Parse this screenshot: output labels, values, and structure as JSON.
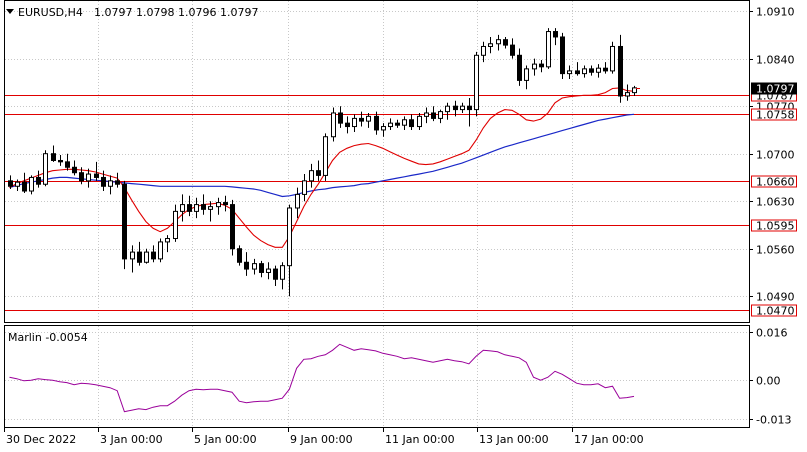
{
  "header": {
    "symbol": "EURUSD,H4",
    "ohlc": "1.0797 1.0798 1.0796 1.0797"
  },
  "indicator": {
    "label": "Marlin -0.0054",
    "color": "#9a009a"
  },
  "colors": {
    "level": "#e00000",
    "ma_fast": "#e00000",
    "ma_slow": "#1a28c8",
    "candle": "#000000"
  },
  "chart_data": [
    {
      "type": "candlestick",
      "title": "EURUSD,H4",
      "ylim": [
        1.0452,
        1.0925
      ],
      "y_ticks": [
        "1.0910",
        "1.0840",
        "1.0770",
        "1.0700",
        "1.0630",
        "1.0560",
        "1.0490"
      ],
      "x_ticks": [
        "30 Dec 2022",
        "3 Jan 00:00",
        "5 Jan 00:00",
        "9 Jan 00:00",
        "11 Jan 00:00",
        "13 Jan 00:00",
        "17 Jan 00:00"
      ],
      "current_price": "1.0797",
      "levels": [
        "1.0787",
        "1.0758",
        "1.0660",
        "1.0595",
        "1.0470"
      ],
      "candles": [
        [
          1.066,
          1.0668,
          1.0648,
          1.0652
        ],
        [
          1.0652,
          1.0662,
          1.0645,
          1.0658
        ],
        [
          1.0658,
          1.0672,
          1.0642,
          1.0645
        ],
        [
          1.0645,
          1.0668,
          1.064,
          1.0665
        ],
        [
          1.0665,
          1.0675,
          1.065,
          1.0655
        ],
        [
          1.0655,
          1.0705,
          1.0652,
          1.07
        ],
        [
          1.07,
          1.0712,
          1.0688,
          1.069
        ],
        [
          1.069,
          1.0698,
          1.0682,
          1.0688
        ],
        [
          1.0688,
          1.07,
          1.0675,
          1.068
        ],
        [
          1.068,
          1.069,
          1.0668,
          1.0672
        ],
        [
          1.0672,
          1.068,
          1.0655,
          1.066
        ],
        [
          1.066,
          1.0678,
          1.065,
          1.067
        ],
        [
          1.067,
          1.0688,
          1.066,
          1.0665
        ],
        [
          1.0665,
          1.0675,
          1.0645,
          1.0652
        ],
        [
          1.0652,
          1.0668,
          1.064,
          1.066
        ],
        [
          1.066,
          1.0672,
          1.065,
          1.0655
        ],
        [
          1.0655,
          1.066,
          1.053,
          1.0545
        ],
        [
          1.0545,
          1.0565,
          1.0525,
          1.0555
        ],
        [
          1.0555,
          1.057,
          1.0535,
          1.054
        ],
        [
          1.054,
          1.056,
          1.0538,
          1.0555
        ],
        [
          1.0555,
          1.0565,
          1.054,
          1.0545
        ],
        [
          1.0545,
          1.0575,
          1.054,
          1.057
        ],
        [
          1.057,
          1.058,
          1.0555,
          1.0575
        ],
        [
          1.0575,
          1.0625,
          1.057,
          1.0615
        ],
        [
          1.0615,
          1.064,
          1.06,
          1.0625
        ],
        [
          1.0625,
          1.0638,
          1.0608,
          1.0615
        ],
        [
          1.0615,
          1.0635,
          1.0605,
          1.0625
        ],
        [
          1.0625,
          1.064,
          1.061,
          1.0618
        ],
        [
          1.0618,
          1.063,
          1.06,
          1.0622
        ],
        [
          1.0622,
          1.0635,
          1.061,
          1.0628
        ],
        [
          1.0628,
          1.0638,
          1.0615,
          1.0625
        ],
        [
          1.0625,
          1.0632,
          1.055,
          1.056
        ],
        [
          1.056,
          1.0565,
          1.0535,
          1.054
        ],
        [
          1.054,
          1.0555,
          1.052,
          1.053
        ],
        [
          1.053,
          1.0545,
          1.0522,
          1.0538
        ],
        [
          1.0538,
          1.0542,
          1.0518,
          1.0525
        ],
        [
          1.0525,
          1.054,
          1.0515,
          1.053
        ],
        [
          1.053,
          1.0535,
          1.0505,
          1.0515
        ],
        [
          1.0515,
          1.054,
          1.05,
          1.0535
        ],
        [
          1.0535,
          1.0625,
          1.049,
          1.062
        ],
        [
          1.062,
          1.065,
          1.0605,
          1.064
        ],
        [
          1.064,
          1.067,
          1.063,
          1.066
        ],
        [
          1.066,
          1.0685,
          1.065,
          1.0675
        ],
        [
          1.0675,
          1.069,
          1.066,
          1.0668
        ],
        [
          1.0668,
          1.073,
          1.066,
          1.0725
        ],
        [
          1.0725,
          1.0768,
          1.0718,
          1.076
        ],
        [
          1.076,
          1.077,
          1.0738,
          1.0745
        ],
        [
          1.0745,
          1.0755,
          1.073,
          1.074
        ],
        [
          1.074,
          1.0758,
          1.0732,
          1.0752
        ],
        [
          1.0752,
          1.0762,
          1.074,
          1.0748
        ],
        [
          1.0748,
          1.076,
          1.0738,
          1.0755
        ],
        [
          1.0755,
          1.0762,
          1.0728,
          1.0735
        ],
        [
          1.0735,
          1.0745,
          1.0725,
          1.074
        ],
        [
          1.074,
          1.0752,
          1.0735,
          1.0745
        ],
        [
          1.0745,
          1.075,
          1.0738,
          1.0742
        ],
        [
          1.0742,
          1.0755,
          1.0735,
          1.075
        ],
        [
          1.075,
          1.0758,
          1.0735,
          1.074
        ],
        [
          1.074,
          1.076,
          1.0735,
          1.0755
        ],
        [
          1.0755,
          1.0768,
          1.0745,
          1.076
        ],
        [
          1.076,
          1.077,
          1.0748,
          1.0752
        ],
        [
          1.0752,
          1.0765,
          1.0745,
          1.0762
        ],
        [
          1.0762,
          1.0775,
          1.075,
          1.077
        ],
        [
          1.077,
          1.0778,
          1.0755,
          1.0765
        ],
        [
          1.0765,
          1.0775,
          1.076,
          1.077
        ],
        [
          1.077,
          1.0782,
          1.074,
          1.0765
        ],
        [
          1.0765,
          1.085,
          1.0755,
          1.0845
        ],
        [
          1.0845,
          1.0865,
          1.0835,
          1.0858
        ],
        [
          1.0858,
          1.0872,
          1.0848,
          1.0862
        ],
        [
          1.0862,
          1.0875,
          1.0852,
          1.0868
        ],
        [
          1.0868,
          1.0872,
          1.0855,
          1.086
        ],
        [
          1.086,
          1.087,
          1.084,
          1.0845
        ],
        [
          1.0845,
          1.0855,
          1.08,
          1.0808
        ],
        [
          1.0808,
          1.083,
          1.0795,
          1.0825
        ],
        [
          1.0825,
          1.084,
          1.0815,
          1.0832
        ],
        [
          1.0832,
          1.0838,
          1.082,
          1.0828
        ],
        [
          1.0828,
          1.0885,
          1.0825,
          1.088
        ],
        [
          1.088,
          1.0885,
          1.086,
          1.0872
        ],
        [
          1.0872,
          1.0878,
          1.081,
          1.0818
        ],
        [
          1.0818,
          1.083,
          1.081,
          1.0822
        ],
        [
          1.0822,
          1.0835,
          1.0815,
          1.0818
        ],
        [
          1.0818,
          1.083,
          1.0812,
          1.0825
        ],
        [
          1.0825,
          1.083,
          1.0815,
          1.082
        ],
        [
          1.082,
          1.0832,
          1.0812,
          1.0826
        ],
        [
          1.0826,
          1.0835,
          1.0818,
          1.0822
        ],
        [
          1.0822,
          1.0865,
          1.0818,
          1.0858
        ],
        [
          1.0858,
          1.0875,
          1.0775,
          1.0785
        ],
        [
          1.0785,
          1.0802,
          1.0778,
          1.079
        ],
        [
          1.079,
          1.08,
          1.0785,
          1.0797
        ]
      ],
      "ma_fast": [
        1.065,
        1.0656,
        1.066,
        1.0664,
        1.0668,
        1.0672,
        1.0675,
        1.0676,
        1.0677,
        1.0677,
        1.0676,
        1.0675,
        1.0673,
        1.067,
        1.0667,
        1.0664,
        1.065,
        1.0632,
        1.0615,
        1.06,
        1.059,
        1.0585,
        1.059,
        1.06,
        1.061,
        1.0618,
        1.0622,
        1.0625,
        1.0626,
        1.0627,
        1.0624,
        1.0618,
        1.0605,
        1.0592,
        1.058,
        1.0572,
        1.0566,
        1.0562,
        1.0562,
        1.0578,
        1.06,
        1.0622,
        1.064,
        1.0655,
        1.0672,
        1.069,
        1.0702,
        1.0708,
        1.0712,
        1.0714,
        1.0715,
        1.0712,
        1.0708,
        1.0703,
        1.0698,
        1.0693,
        1.0689,
        1.0685,
        1.0684,
        1.0685,
        1.0688,
        1.0692,
        1.0696,
        1.07,
        1.0705,
        1.072,
        1.0738,
        1.0752,
        1.076,
        1.0765,
        1.0764,
        1.0758,
        1.075,
        1.0748,
        1.0751,
        1.076,
        1.0775,
        1.0782,
        1.0784,
        1.0785,
        1.0786,
        1.0786,
        1.0787,
        1.079,
        1.0796,
        1.0797,
        1.0793,
        1.0792
      ],
      "ma_slow": [
        1.065,
        1.0653,
        1.0656,
        1.0658,
        1.066,
        1.0662,
        1.0664,
        1.0665,
        1.0665,
        1.0664,
        1.0663,
        1.0662,
        1.0661,
        1.066,
        1.0659,
        1.0658,
        1.0657,
        1.0656,
        1.0655,
        1.0654,
        1.0653,
        1.0652,
        1.0652,
        1.0652,
        1.0652,
        1.0652,
        1.0652,
        1.0652,
        1.0652,
        1.0652,
        1.0652,
        1.0651,
        1.065,
        1.0649,
        1.0648,
        1.0646,
        1.0643,
        1.064,
        1.0637,
        1.0638,
        1.064,
        1.0643,
        1.0645,
        1.0647,
        1.0648,
        1.065,
        1.0651,
        1.0652,
        1.0653,
        1.0655,
        1.0656,
        1.0658,
        1.066,
        1.0662,
        1.0664,
        1.0666,
        1.0668,
        1.067,
        1.0672,
        1.0674,
        1.0677,
        1.068,
        1.0683,
        1.0686,
        1.069,
        1.0694,
        1.0698,
        1.0702,
        1.0706,
        1.071,
        1.0713,
        1.0716,
        1.0719,
        1.0722,
        1.0725,
        1.0728,
        1.0731,
        1.0734,
        1.0737,
        1.074,
        1.0743,
        1.0746,
        1.0749,
        1.0751,
        1.0753,
        1.0755,
        1.0757,
        1.0758
      ]
    },
    {
      "type": "line",
      "title": "Marlin -0.0054",
      "ylim": [
        -0.0156,
        0.0181
      ],
      "y_ticks": [
        "0.016",
        "0.00",
        "-0.013"
      ],
      "values": [
        0.001,
        0.0005,
        -0.0002,
        0.0,
        0.0005,
        0.0002,
        0.0,
        -0.0005,
        -0.0008,
        -0.0015,
        -0.001,
        -0.0012,
        -0.0015,
        -0.002,
        -0.0025,
        -0.0035,
        -0.0105,
        -0.01,
        -0.0095,
        -0.0098,
        -0.009,
        -0.0085,
        -0.0085,
        -0.007,
        -0.005,
        -0.0035,
        -0.003,
        -0.0032,
        -0.003,
        -0.003,
        -0.0035,
        -0.004,
        -0.007,
        -0.0075,
        -0.0072,
        -0.007,
        -0.007,
        -0.0065,
        -0.006,
        -0.003,
        0.004,
        0.007,
        0.0072,
        0.008,
        0.0085,
        0.01,
        0.012,
        0.011,
        0.01,
        0.0105,
        0.0102,
        0.0098,
        0.009,
        0.0085,
        0.008,
        0.0072,
        0.0075,
        0.007,
        0.0065,
        0.006,
        0.0065,
        0.007,
        0.0065,
        0.0062,
        0.0055,
        0.008,
        0.01,
        0.0098,
        0.0095,
        0.0085,
        0.008,
        0.0075,
        0.006,
        0.001,
        0.0,
        0.001,
        0.003,
        0.002,
        0.0005,
        -0.001,
        -0.0015,
        -0.0015,
        -0.0012,
        -0.0025,
        -0.002,
        -0.006,
        -0.0058,
        -0.0054
      ]
    }
  ]
}
